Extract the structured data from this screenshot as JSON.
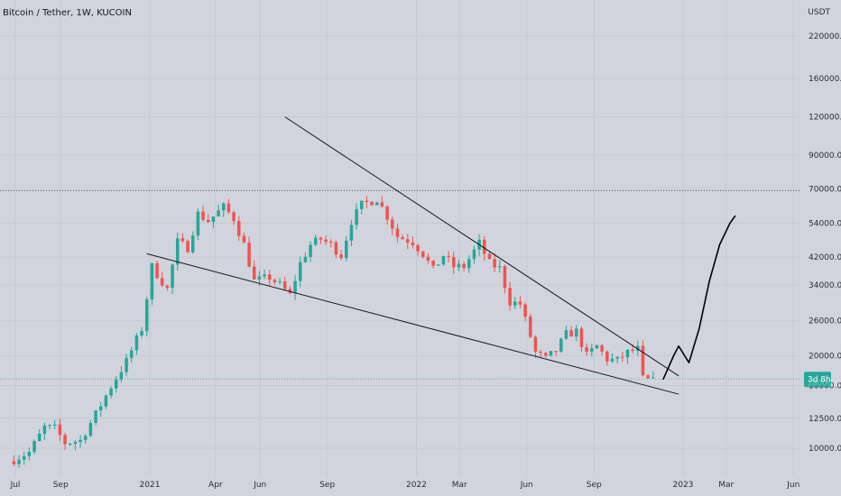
{
  "header": {
    "title": "Bitcoin / Tether, 1W, KUCOIN",
    "currency": "USDT"
  },
  "price_badge": {
    "label": "3d 8h",
    "top_value": "18000.0"
  },
  "colors": {
    "background": "#d1d4dc",
    "up": "#26a69a",
    "down": "#ef5350",
    "line": "#131722",
    "badge": "#26a69a"
  },
  "chart_data": {
    "type": "candlestick",
    "symbol": "Bitcoin / Tether",
    "interval": "1W",
    "exchange": "KUCOIN",
    "y_scale": "log",
    "y_ticks": [
      220000,
      160000,
      120000,
      90000,
      70000,
      54000,
      42000,
      34000,
      26000,
      20000,
      16000,
      12500,
      10000
    ],
    "y_tick_labels": [
      "220000.0",
      "160000.0",
      "120000.0",
      "90000.0",
      "70000.0",
      "54000.0",
      "42000.0",
      "34000.0",
      "26000.0",
      "20000.0",
      "16000.0",
      "12500.0",
      "10000.0"
    ],
    "x_tick_labels": [
      "Jul",
      "Sep",
      "2021",
      "Apr",
      "Jun",
      "Sep",
      "2022",
      "Mar",
      "Jun",
      "Sep",
      "2023",
      "Mar",
      "Jun"
    ],
    "x_tick_dates": [
      "2020-07-01",
      "2020-09-01",
      "2021-01-01",
      "2021-04-01",
      "2021-06-01",
      "2021-09-01",
      "2022-01-01",
      "2022-03-01",
      "2022-06-01",
      "2022-09-01",
      "2023-01-01",
      "2023-03-01",
      "2023-06-01"
    ],
    "close_series": [
      [
        "2020-06-29",
        9200
      ],
      [
        "2020-07-20",
        9700
      ],
      [
        "2020-08-10",
        11700
      ],
      [
        "2020-08-24",
        11600
      ],
      [
        "2020-09-07",
        10400
      ],
      [
        "2020-09-28",
        10600
      ],
      [
        "2020-10-19",
        12900
      ],
      [
        "2020-11-09",
        15900
      ],
      [
        "2020-11-30",
        19200
      ],
      [
        "2020-12-21",
        24500
      ],
      [
        "2021-01-04",
        39000
      ],
      [
        "2021-01-25",
        33000
      ],
      [
        "2021-02-08",
        47000
      ],
      [
        "2021-02-22",
        45000
      ],
      [
        "2021-03-08",
        58000
      ],
      [
        "2021-03-22",
        55000
      ],
      [
        "2021-04-12",
        61000
      ],
      [
        "2021-04-26",
        56000
      ],
      [
        "2021-05-10",
        46000
      ],
      [
        "2021-05-24",
        35000
      ],
      [
        "2021-06-14",
        36000
      ],
      [
        "2021-06-28",
        34000
      ],
      [
        "2021-07-12",
        31500
      ],
      [
        "2021-07-26",
        40000
      ],
      [
        "2021-08-09",
        46000
      ],
      [
        "2021-08-23",
        48000
      ],
      [
        "2021-09-06",
        46000
      ],
      [
        "2021-09-20",
        42500
      ],
      [
        "2021-10-04",
        55000
      ],
      [
        "2021-10-18",
        62000
      ],
      [
        "2021-11-08",
        65000
      ],
      [
        "2021-11-22",
        57000
      ],
      [
        "2021-12-06",
        49000
      ],
      [
        "2021-12-27",
        47000
      ],
      [
        "2022-01-10",
        43000
      ],
      [
        "2022-01-24",
        38000
      ],
      [
        "2022-02-07",
        42500
      ],
      [
        "2022-02-21",
        39000
      ],
      [
        "2022-03-07",
        39000
      ],
      [
        "2022-03-28",
        46500
      ],
      [
        "2022-04-11",
        40000
      ],
      [
        "2022-04-25",
        38500
      ],
      [
        "2022-05-09",
        30000
      ],
      [
        "2022-05-23",
        29500
      ],
      [
        "2022-06-13",
        20500
      ],
      [
        "2022-06-27",
        19500
      ],
      [
        "2022-07-11",
        20800
      ],
      [
        "2022-07-25",
        23500
      ],
      [
        "2022-08-08",
        24000
      ],
      [
        "2022-08-22",
        20000
      ],
      [
        "2022-09-05",
        21500
      ],
      [
        "2022-09-19",
        19500
      ],
      [
        "2022-10-03",
        19300
      ],
      [
        "2022-10-17",
        20500
      ],
      [
        "2022-10-31",
        21000
      ],
      [
        "2022-11-07",
        16800
      ],
      [
        "2022-11-21",
        16500
      ]
    ],
    "horizontal_levels": [
      {
        "value": 69000,
        "style": "dotted",
        "color": "#131722"
      },
      {
        "value": 16800,
        "style": "dotted",
        "color": "#26a69a"
      }
    ],
    "trendlines": [
      {
        "from": [
          "2021-07-05",
          120000
        ],
        "to": [
          "2022-12-26",
          17200
        ]
      },
      {
        "from": [
          "2020-12-28",
          43000
        ],
        "to": [
          "2022-12-26",
          15000
        ]
      }
    ],
    "projection_path": [
      [
        "2022-12-05",
        16800
      ],
      [
        "2022-12-19",
        20000
      ],
      [
        "2022-12-26",
        21500
      ],
      [
        "2023-01-09",
        19000
      ],
      [
        "2023-01-23",
        24500
      ],
      [
        "2023-02-06",
        35000
      ],
      [
        "2023-02-20",
        46000
      ],
      [
        "2023-03-06",
        54000
      ],
      [
        "2023-03-13",
        57000
      ]
    ]
  }
}
